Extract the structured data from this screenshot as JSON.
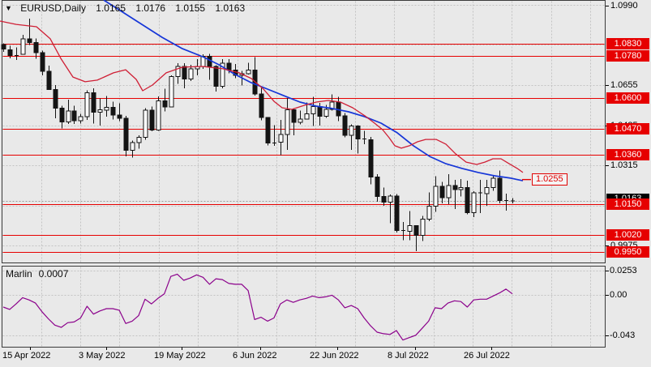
{
  "title": {
    "symbol": "EURUSD,Daily",
    "open": "1.0165",
    "high": "1.0176",
    "low": "1.0155",
    "close": "1.0163"
  },
  "colors": {
    "background": "#e9e9e9",
    "border": "#3a3a3a",
    "grid": "#c3c3c3",
    "level_red": "#e60000",
    "box_red": "#e60000",
    "box_text": "#ffffff",
    "ma_blue": "#1636d8",
    "ma_red": "#cf1f35",
    "marlin_purple": "#8b008b",
    "candle_up": "#ffffff",
    "candle_down": "#141414",
    "candle_border": "#141414",
    "current_line": "#9a9a9a",
    "current_tag_bg": "#000000"
  },
  "price_axis": {
    "plain_labels": [
      "1.0990",
      "1.0655",
      "1.0485",
      "1.0315",
      "0.9975"
    ],
    "plain_prices": [
      1.099,
      1.0655,
      1.0485,
      1.0315,
      0.9975
    ],
    "current": {
      "text": "1.0163",
      "price": 1.0163
    }
  },
  "levels": {
    "labels": [
      "1.0830",
      "1.0780",
      "1.0600",
      "1.0470",
      "1.0360",
      "1.0150",
      "1.0020",
      "0.9950"
    ],
    "prices": [
      1.083,
      1.078,
      1.06,
      1.047,
      1.036,
      1.015,
      1.002,
      0.995
    ]
  },
  "callout": {
    "text": "1.0255",
    "price": 1.0255,
    "x": 656
  },
  "time_axis": {
    "labels": [
      "15 Apr 2022",
      "3 May 2022",
      "19 May 2022",
      "6 Jun 2022",
      "22 Jun 2022",
      "8 Jul 2022",
      "26 Jul 2022"
    ],
    "x": [
      3,
      97,
      190,
      287,
      382,
      478,
      572
    ]
  },
  "indicator": {
    "name": "Marlin",
    "value_label": "0.0007",
    "axis_labels": [
      "0.0253",
      "0.00",
      "-0.043"
    ],
    "axis_values": [
      0.0253,
      0.0,
      -0.043
    ]
  },
  "chart_data": {
    "type": "candlestick",
    "title": "EURUSD,Daily",
    "ylim": [
      0.993,
      1.1
    ],
    "grid": true,
    "x_tick_labels": [
      "15 Apr 2022",
      "3 May 2022",
      "19 May 2022",
      "6 Jun 2022",
      "22 Jun 2022",
      "8 Jul 2022",
      "26 Jul 2022"
    ],
    "horizontal_levels": [
      1.083,
      1.078,
      1.06,
      1.047,
      1.036,
      1.015,
      1.002,
      0.995
    ],
    "callout_level": 1.0255,
    "current_price": 1.0163,
    "candles_format": [
      "date",
      "open",
      "high",
      "low",
      "close"
    ],
    "candles": [
      [
        "04-15",
        1.0827,
        1.0832,
        1.0795,
        1.0808
      ],
      [
        "04-18",
        1.0805,
        1.0821,
        1.0769,
        1.0781
      ],
      [
        "04-19",
        1.0781,
        1.0815,
        1.0761,
        1.0785
      ],
      [
        "04-20",
        1.0786,
        1.0867,
        1.0785,
        1.0851
      ],
      [
        "04-21",
        1.0851,
        1.0936,
        1.0824,
        1.0836
      ],
      [
        "04-22",
        1.0836,
        1.0852,
        1.0767,
        1.0793
      ],
      [
        "04-25",
        1.0793,
        1.08,
        1.0697,
        1.0713
      ],
      [
        "04-26",
        1.0713,
        1.0738,
        1.0635,
        1.0637
      ],
      [
        "04-27",
        1.0637,
        1.0655,
        1.0514,
        1.0558
      ],
      [
        "04-28",
        1.0558,
        1.0568,
        1.0471,
        1.0499
      ],
      [
        "04-29",
        1.0499,
        1.0593,
        1.0491,
        1.0545
      ],
      [
        "05-02",
        1.0545,
        1.0568,
        1.049,
        1.0505
      ],
      [
        "05-03",
        1.0505,
        1.0533,
        1.0493,
        1.0522
      ],
      [
        "05-04",
        1.0522,
        1.0632,
        1.0508,
        1.0622
      ],
      [
        "05-05",
        1.0622,
        1.0642,
        1.0492,
        1.054
      ],
      [
        "05-06",
        1.054,
        1.0599,
        1.0483,
        1.0551
      ],
      [
        "05-09",
        1.0548,
        1.0609,
        1.0522,
        1.0561
      ],
      [
        "05-10",
        1.0561,
        1.0585,
        1.051,
        1.0528
      ],
      [
        "05-11",
        1.0528,
        1.0578,
        1.0503,
        1.0514
      ],
      [
        "05-12",
        1.0514,
        1.0525,
        1.0354,
        1.0379
      ],
      [
        "05-13",
        1.0379,
        1.042,
        1.0348,
        1.0411
      ],
      [
        "05-16",
        1.0411,
        1.0443,
        1.0386,
        1.0434
      ],
      [
        "05-17",
        1.0434,
        1.0557,
        1.0424,
        1.0549
      ],
      [
        "05-18",
        1.0549,
        1.0564,
        1.0459,
        1.0464
      ],
      [
        "05-19",
        1.0464,
        1.0607,
        1.0462,
        1.0588
      ],
      [
        "05-20",
        1.0588,
        1.064,
        1.0543,
        1.0562
      ],
      [
        "05-23",
        1.0562,
        1.0697,
        1.0562,
        1.0691
      ],
      [
        "05-24",
        1.0691,
        1.0748,
        1.0661,
        1.0734
      ],
      [
        "05-25",
        1.0734,
        1.0748,
        1.0642,
        1.068
      ],
      [
        "05-26",
        1.068,
        1.0741,
        1.0672,
        1.0724
      ],
      [
        "05-27",
        1.0724,
        1.0765,
        1.0697,
        1.0734
      ],
      [
        "05-30",
        1.0734,
        1.0786,
        1.0724,
        1.0777
      ],
      [
        "05-31",
        1.0777,
        1.0787,
        1.0678,
        1.0734
      ],
      [
        "06-01",
        1.0734,
        1.0739,
        1.0627,
        1.065
      ],
      [
        "06-02",
        1.065,
        1.0764,
        1.0641,
        1.0747
      ],
      [
        "06-03",
        1.0747,
        1.0764,
        1.0704,
        1.0719
      ],
      [
        "06-06",
        1.0719,
        1.0744,
        1.0684,
        1.0697
      ],
      [
        "06-07",
        1.0697,
        1.0715,
        1.0653,
        1.0703
      ],
      [
        "06-08",
        1.0703,
        1.0749,
        1.0699,
        1.0718
      ],
      [
        "06-09",
        1.0718,
        1.0774,
        1.0611,
        1.0617
      ],
      [
        "06-10",
        1.0617,
        1.0643,
        1.0506,
        1.0518
      ],
      [
        "06-13",
        1.0518,
        1.052,
        1.0399,
        1.0409
      ],
      [
        "06-14",
        1.0409,
        1.0485,
        1.0397,
        1.0413
      ],
      [
        "06-15",
        1.0413,
        1.0508,
        1.0359,
        1.0446
      ],
      [
        "06-16",
        1.0446,
        1.0601,
        1.0381,
        1.0551
      ],
      [
        "06-17",
        1.0551,
        1.0558,
        1.0443,
        1.0498
      ],
      [
        "06-20",
        1.0498,
        1.0547,
        1.0489,
        1.0511
      ],
      [
        "06-21",
        1.0511,
        1.0582,
        1.0509,
        1.0533
      ],
      [
        "06-22",
        1.0533,
        1.0605,
        1.0482,
        1.0565
      ],
      [
        "06-23",
        1.0565,
        1.058,
        1.0483,
        1.0523
      ],
      [
        "06-24",
        1.0523,
        1.0571,
        1.0517,
        1.0553
      ],
      [
        "06-27",
        1.0553,
        1.0615,
        1.0547,
        1.0583
      ],
      [
        "06-28",
        1.0583,
        1.0606,
        1.0503,
        1.0524
      ],
      [
        "06-29",
        1.0524,
        1.0536,
        1.0433,
        1.0443
      ],
      [
        "06-30",
        1.0443,
        1.0489,
        1.0381,
        1.0482
      ],
      [
        "07-01",
        1.0482,
        1.0486,
        1.0365,
        1.0427
      ],
      [
        "07-04",
        1.0427,
        1.0461,
        1.0405,
        1.0423
      ],
      [
        "07-05",
        1.0423,
        1.0435,
        1.0235,
        1.0265
      ],
      [
        "07-06",
        1.0265,
        1.0277,
        1.0161,
        1.0184
      ],
      [
        "07-07",
        1.0184,
        1.0221,
        1.0144,
        1.016
      ],
      [
        "07-08",
        1.016,
        1.0192,
        1.0071,
        1.0186
      ],
      [
        "07-11",
        1.0186,
        1.0193,
        1.0031,
        1.004
      ],
      [
        "07-12",
        1.004,
        1.0075,
        0.9999,
        1.0036
      ],
      [
        "07-13",
        1.0036,
        1.0122,
        0.9998,
        1.006
      ],
      [
        "07-14",
        1.006,
        1.0062,
        0.9952,
        1.0018
      ],
      [
        "07-15",
        1.0018,
        1.0101,
        0.9994,
        1.0087
      ],
      [
        "07-18",
        1.0087,
        1.0201,
        1.0079,
        1.0143
      ],
      [
        "07-19",
        1.0143,
        1.0269,
        1.0119,
        1.0227
      ],
      [
        "07-20",
        1.0227,
        1.0246,
        1.0155,
        1.0179
      ],
      [
        "07-21",
        1.0179,
        1.0278,
        1.0151,
        1.0229
      ],
      [
        "07-22",
        1.0229,
        1.0254,
        1.013,
        1.0213
      ],
      [
        "07-25",
        1.0213,
        1.0258,
        1.0183,
        1.0222
      ],
      [
        "07-26",
        1.0222,
        1.025,
        1.0108,
        1.0115
      ],
      [
        "07-27",
        1.0115,
        1.0205,
        1.0096,
        1.0199
      ],
      [
        "07-28",
        1.0199,
        1.0254,
        1.0113,
        1.0196
      ],
      [
        "07-29",
        1.0196,
        1.0254,
        1.0144,
        1.0221
      ],
      [
        "08-01",
        1.0221,
        1.0274,
        1.0207,
        1.0261
      ],
      [
        "08-02",
        1.0261,
        1.0293,
        1.0155,
        1.0166
      ],
      [
        "08-03",
        1.0166,
        1.0196,
        1.0123,
        1.0165
      ],
      [
        "08-04",
        1.0165,
        1.0176,
        1.0155,
        1.0163
      ]
    ],
    "series": [
      {
        "name": "ma-blue",
        "style": "line",
        "points": [
          [
            128,
            1.1015
          ],
          [
            150,
            1.0967
          ],
          [
            175,
            1.0912
          ],
          [
            200,
            1.0857
          ],
          [
            225,
            1.0809
          ],
          [
            250,
            1.0775
          ],
          [
            270,
            1.0741
          ],
          [
            290,
            1.07
          ],
          [
            310,
            1.0665
          ],
          [
            330,
            1.0638
          ],
          [
            350,
            1.061
          ],
          [
            370,
            1.0583
          ],
          [
            390,
            1.0566
          ],
          [
            410,
            1.0556
          ],
          [
            430,
            1.0542
          ],
          [
            450,
            1.0521
          ],
          [
            470,
            1.0494
          ],
          [
            490,
            1.0453
          ],
          [
            510,
            1.0398
          ],
          [
            530,
            1.0353
          ],
          [
            550,
            1.0322
          ],
          [
            570,
            1.0302
          ],
          [
            590,
            1.0285
          ],
          [
            610,
            1.0271
          ],
          [
            630,
            1.0261
          ],
          [
            645,
            1.025
          ]
        ]
      },
      {
        "name": "ma-red",
        "style": "line",
        "points": [
          [
            0,
            1.0926
          ],
          [
            20,
            1.0912
          ],
          [
            45,
            1.0902
          ],
          [
            62,
            1.0851
          ],
          [
            75,
            1.0768
          ],
          [
            90,
            1.0689
          ],
          [
            105,
            1.0669
          ],
          [
            120,
            1.0676
          ],
          [
            140,
            1.0707
          ],
          [
            155,
            1.072
          ],
          [
            168,
            1.0679
          ],
          [
            176,
            1.0631
          ],
          [
            188,
            1.0655
          ],
          [
            205,
            1.0707
          ],
          [
            225,
            1.0731
          ],
          [
            250,
            1.0734
          ],
          [
            275,
            1.0724
          ],
          [
            295,
            1.0707
          ],
          [
            310,
            1.0683
          ],
          [
            325,
            1.0638
          ],
          [
            338,
            1.0586
          ],
          [
            348,
            1.0559
          ],
          [
            360,
            1.0552
          ],
          [
            375,
            1.0569
          ],
          [
            390,
            1.0583
          ],
          [
            405,
            1.059
          ],
          [
            420,
            1.0583
          ],
          [
            435,
            1.0559
          ],
          [
            450,
            1.0525
          ],
          [
            462,
            1.0494
          ],
          [
            472,
            1.0466
          ],
          [
            480,
            1.0432
          ],
          [
            487,
            1.0398
          ],
          [
            495,
            1.0388
          ],
          [
            505,
            1.0398
          ],
          [
            515,
            1.0415
          ],
          [
            525,
            1.0425
          ],
          [
            538,
            1.0425
          ],
          [
            550,
            1.0405
          ],
          [
            562,
            1.0364
          ],
          [
            575,
            1.0329
          ],
          [
            588,
            1.0319
          ],
          [
            598,
            1.0329
          ],
          [
            608,
            1.0343
          ],
          [
            618,
            1.0343
          ],
          [
            628,
            1.0322
          ],
          [
            638,
            1.0302
          ],
          [
            645,
            1.0285
          ]
        ]
      },
      {
        "name": "Marlin",
        "style": "oscillator",
        "values": [
          -0.0131,
          -0.0156,
          -0.0098,
          -0.0033,
          -0.0057,
          -0.009,
          -0.018,
          -0.0254,
          -0.032,
          -0.0344,
          -0.0295,
          -0.0287,
          -0.0246,
          -0.0123,
          -0.0205,
          -0.0172,
          -0.0148,
          -0.0148,
          -0.0164,
          -0.0303,
          -0.0279,
          -0.0221,
          -0.0049,
          -0.0098,
          -0.0041,
          0.0008,
          0.0189,
          0.0213,
          0.0148,
          0.0172,
          0.0205,
          0.018,
          0.0107,
          0.0164,
          0.0156,
          0.0115,
          0.0107,
          0.0107,
          0.0041,
          -0.0262,
          -0.0238,
          -0.0279,
          -0.0246,
          -0.0098,
          -0.0057,
          -0.0082,
          -0.0057,
          -0.0041,
          -0.0016,
          -0.0033,
          -0.0025,
          -0.0008,
          -0.0057,
          -0.0139,
          -0.0115,
          -0.0148,
          -0.0246,
          -0.0328,
          -0.0394,
          -0.041,
          -0.0418,
          -0.0377,
          -0.0476,
          -0.0451,
          -0.0426,
          -0.0353,
          -0.0279,
          -0.0139,
          -0.0148,
          -0.009,
          -0.0066,
          -0.0074,
          -0.0131,
          -0.0057,
          -0.0049,
          -0.0049,
          -0.0016,
          0.0016,
          0.0057,
          0.0007
        ]
      }
    ]
  }
}
